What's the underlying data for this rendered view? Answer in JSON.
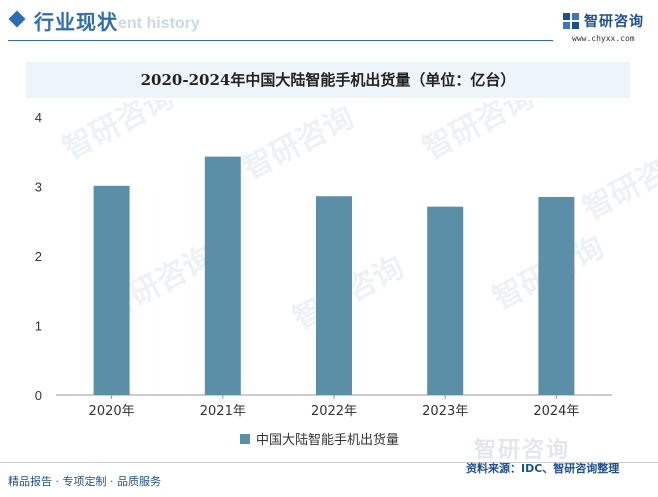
{
  "header": {
    "section_title": "行业现状",
    "ghost_text": "ent history",
    "logo_name": "智研咨询",
    "logo_url": "www.chyxx.com"
  },
  "chart_data": {
    "type": "bar",
    "title": "2020-2024年中国大陆智能手机出货量（单位：亿台）",
    "categories": [
      "2020年",
      "2021年",
      "2022年",
      "2023年",
      "2024年"
    ],
    "series": [
      {
        "name": "中国大陆智能手机出货量",
        "values": [
          3.01,
          3.43,
          2.86,
          2.71,
          2.85
        ]
      }
    ],
    "ylim": [
      0,
      4
    ],
    "yticks": [
      "0",
      "1",
      "2",
      "3",
      "4"
    ],
    "grid": false,
    "legend": "bottom",
    "bar_color": "#5b8fa8",
    "watermark": "智研咨询"
  },
  "footer": {
    "left": "精品报告 · 专项定制 · 品质服务",
    "source": "资料来源：IDC、智研咨询整理"
  }
}
